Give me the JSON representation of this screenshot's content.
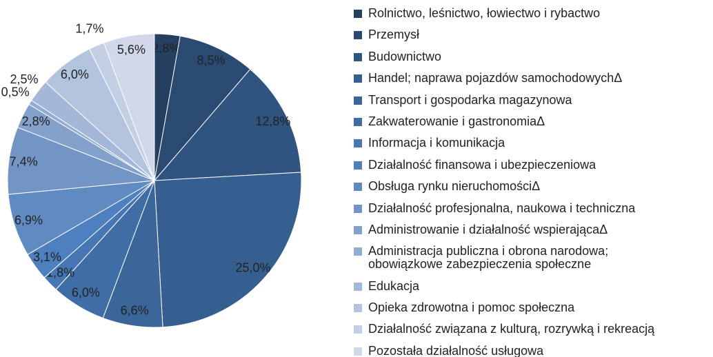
{
  "chart_data": {
    "type": "pie",
    "categories": [
      "Rolnictwo, leśnictwo, łowiectwo i rybactwo",
      "Przemysł",
      "Budownictwo",
      "Handel; naprawa pojazdów samochodowychΔ",
      "Transport i gospodarka magazynowa",
      "Zakwaterowanie i gastronomiaΔ",
      "Informacja i komunikacja",
      "Działalność finansowa i ubezpieczeniowa",
      "Obsługa rynku nieruchomościΔ",
      "Działalność profesjonalna, naukowa i techniczna",
      "Administrowanie i działalność wspierającaΔ",
      "Administracja publiczna i obrona narodowa;\nobowiązkowe zabezpieczenia społeczne",
      "Edukacja",
      "Opieka zdrowotna i pomoc społeczna",
      "Działalność związana z kulturą, rozrywką i rekreacją",
      "Pozostała działalność usługowa"
    ],
    "values": [
      2.8,
      8.5,
      12.8,
      25.0,
      6.6,
      6.0,
      1.8,
      3.1,
      6.9,
      7.4,
      2.8,
      0.5,
      2.5,
      6.0,
      1.7,
      5.6
    ],
    "value_labels": [
      "2,8%",
      "8,5%",
      "12,8%",
      "25,0%",
      "6,6%",
      "6,0%",
      "1,8%",
      "3,1%",
      "6,9%",
      "7,4%",
      "2,8%",
      "0,5%",
      "2,5%",
      "6,0%",
      "1,7%",
      "5,6%"
    ],
    "colors": [
      "#243f60",
      "#2a4a72",
      "#2f5480",
      "#355f8e",
      "#3a6699",
      "#3f6ea6",
      "#4677b4",
      "#4e7fbe",
      "#5f8bc2",
      "#7295c6",
      "#83a1cb",
      "#93add2",
      "#a3b8d8",
      "#b3c4de",
      "#c3cfe5",
      "#d0d8ea"
    ],
    "legend": "right"
  }
}
